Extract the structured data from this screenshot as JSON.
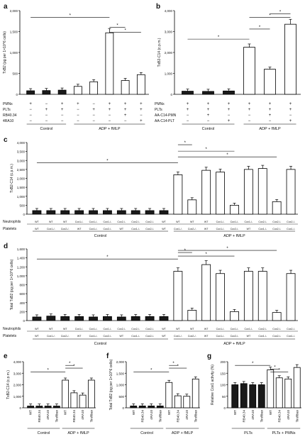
{
  "chart_data": [
    {
      "panel": "a",
      "type": "bar",
      "ylabel": "TxB2 (pg per 1×10^6 cells)",
      "ylim": [
        0,
        2000
      ],
      "yticks": [
        "0",
        "500",
        "1,000",
        "1,500",
        "2,000"
      ],
      "values": [
        85,
        90,
        100,
        190,
        300,
        1470,
        330,
        470
      ],
      "filled": [
        true,
        true,
        true,
        false,
        false,
        false,
        false,
        false
      ],
      "row_labels": [
        "PMNs",
        "PLTs",
        "RB40.34",
        "4RA10"
      ],
      "rows": [
        [
          "+",
          "−",
          "+",
          "+",
          "−",
          "+",
          "+",
          "+"
        ],
        [
          "−",
          "+",
          "+",
          "−",
          "+",
          "+",
          "+",
          "+"
        ],
        [
          "−",
          "−",
          "−",
          "−",
          "−",
          "−",
          "+",
          "−"
        ],
        [
          "−",
          "−",
          "−",
          "−",
          "−",
          "−",
          "−",
          "+"
        ]
      ],
      "groups": [
        "Control",
        "ADP + fMLP"
      ],
      "star": "*"
    },
    {
      "panel": "b",
      "type": "bar",
      "ylabel": "TxB2-C14 (c.p.m.)",
      "ylim": [
        0,
        4000
      ],
      "yticks": [
        "0",
        "1,000",
        "2,000",
        "3,000",
        "4,000"
      ],
      "values": [
        150,
        140,
        160,
        2250,
        1200,
        3350
      ],
      "filled": [
        true,
        true,
        true,
        false,
        false,
        false
      ],
      "row_labels": [
        "PMNs",
        "PLTs",
        "AA-C14-PMN",
        "AA-C14-PLT"
      ],
      "rows": [
        [
          "+",
          "+",
          "+",
          "+",
          "+",
          "+"
        ],
        [
          "+",
          "+",
          "+",
          "+",
          "+",
          "+"
        ],
        [
          "−",
          "+",
          "−",
          "−",
          "+",
          "−"
        ],
        [
          "−",
          "−",
          "+",
          "−",
          "−",
          "+"
        ]
      ],
      "groups": [
        "Control",
        "ADP + fMLP"
      ],
      "star": "*"
    },
    {
      "panel": "c",
      "type": "bar",
      "ylabel": "TxB2-C14 (c.p.m.)",
      "ylim": [
        0,
        4000
      ],
      "yticks": [
        "0",
        "500",
        "1,000",
        "1,500",
        "2,000",
        "2,500",
        "3,000",
        "3,500",
        "4,000"
      ],
      "values": [
        200,
        200,
        200,
        200,
        200,
        200,
        200,
        200,
        200,
        200,
        2200,
        800,
        2450,
        2350,
        500,
        2500,
        2550,
        700,
        2500
      ],
      "filled": [
        true,
        true,
        true,
        true,
        true,
        true,
        true,
        true,
        true,
        true,
        false,
        false,
        false,
        false,
        false,
        false,
        false,
        false,
        false
      ],
      "neutrophils": [
        "WT",
        "WT",
        "WT",
        "Cox1-/-",
        "Cox1-/-",
        "Cox1-/-",
        "Cox2-/-",
        "Cox2-/-",
        "Cox2-/-",
        "WT",
        "WT",
        "WT",
        "WT",
        "Cox1-/-",
        "Cox1-/-",
        "Cox1-/-",
        "Cox2-/-",
        "Cox2-/-",
        "Cox2-/-"
      ],
      "platelets": [
        "WT",
        "Cox1-/-",
        "Cox2-/-",
        "WT",
        "Cox1-/-",
        "Cox2-/-",
        "WT",
        "Cox1-/-",
        "Cox2-/-",
        "WT",
        "Cox1-/-",
        "Cox2-/-",
        "WT",
        "Cox1-/-",
        "Cox2-/-",
        "WT",
        "Cox1-/-",
        "Cox2-/-",
        "Cox1-/-"
      ],
      "row_labels": [
        "Neutrophils",
        "Platelets"
      ],
      "groups": [
        "Control",
        "ADP + fMLP"
      ],
      "star": "*"
    },
    {
      "panel": "d",
      "type": "bar",
      "ylabel": "Total TxB2 (pg per 1×10^6 cells)",
      "ylim": [
        0,
        1600
      ],
      "yticks": [
        "0",
        "200",
        "400",
        "600",
        "800",
        "1,000",
        "1,200",
        "1,400",
        "1,600"
      ],
      "values": [
        80,
        100,
        90,
        90,
        80,
        90,
        80,
        90,
        90,
        90,
        1100,
        230,
        1250,
        1050,
        200,
        1100,
        1100,
        180,
        1050
      ],
      "filled": [
        true,
        true,
        true,
        true,
        true,
        true,
        true,
        true,
        true,
        true,
        false,
        false,
        false,
        false,
        false,
        false,
        false,
        false,
        false
      ],
      "neutrophils": [
        "WT",
        "WT",
        "WT",
        "Cox1-/-",
        "Cox1-/-",
        "Cox1-/-",
        "Cox2-/-",
        "Cox2-/-",
        "Cox2-/-",
        "WT",
        "WT",
        "WT",
        "WT",
        "Cox1-/-",
        "Cox1-/-",
        "Cox1-/-",
        "Cox2-/-",
        "Cox2-/-",
        "Cox2-/-"
      ],
      "platelets": [
        "WT",
        "Cox1-/-",
        "Cox2-/-",
        "WT",
        "Cox1-/-",
        "Cox2-/-",
        "WT",
        "Cox1-/-",
        "Cox2-/-",
        "WT",
        "Cox1-/-",
        "Cox2-/-",
        "WT",
        "Cox1-/-",
        "Cox2-/-",
        "WT",
        "Cox1-/-",
        "Cox2-/-",
        "Cox1-/-"
      ],
      "row_labels": [
        "Neutrophils",
        "Platelets"
      ],
      "groups": [
        "Control",
        "ADP + fMLP"
      ],
      "star": "*"
    },
    {
      "panel": "e",
      "type": "bar",
      "ylabel": "TxB2-C14 (c.p.m.)",
      "ylim": [
        0,
        4000
      ],
      "yticks": [
        "0",
        "1,000",
        "2,000",
        "3,000",
        "4,000"
      ],
      "categories": [
        "WT",
        "RB40.34",
        "4RA10",
        "Tirofiban",
        "WT",
        "RB40.34",
        "4RA10",
        "Tirofiban"
      ],
      "values": [
        150,
        150,
        150,
        150,
        2400,
        1300,
        1100,
        2400
      ],
      "filled": [
        true,
        true,
        true,
        true,
        false,
        false,
        false,
        false
      ],
      "groups": [
        "Control",
        "ADP + fMLP"
      ],
      "star": "*"
    },
    {
      "panel": "f",
      "type": "bar",
      "ylabel": "Total TxB2 (pg per 1×10^6 cells)",
      "ylim": [
        0,
        2000
      ],
      "yticks": [
        "0",
        "500",
        "1,000",
        "1,500",
        "2,000"
      ],
      "categories": [
        "WT",
        "RB40.34",
        "4RA10",
        "Tirofiban",
        "WT",
        "RB40.34",
        "4RA10",
        "Tirofiban"
      ],
      "values": [
        80,
        80,
        80,
        80,
        1100,
        520,
        500,
        1250
      ],
      "filled": [
        true,
        true,
        true,
        true,
        false,
        false,
        false,
        false
      ],
      "groups": [
        "Control",
        "ADP + fMLP"
      ],
      "star": "*"
    },
    {
      "panel": "g",
      "type": "bar",
      "ylabel": "Relative Cox1 activity (%)",
      "ylim": [
        0,
        200
      ],
      "yticks": [
        "0",
        "50",
        "100",
        "150",
        "200"
      ],
      "categories": [
        "WT",
        "RB40.34",
        "4RA10",
        "Tirofiban",
        "WT",
        "RB40.34",
        "4RA10",
        "Tirofiban"
      ],
      "values": [
        100,
        105,
        100,
        100,
        165,
        130,
        125,
        175
      ],
      "filled": [
        true,
        true,
        true,
        true,
        false,
        false,
        false,
        false
      ],
      "groups": [
        "PLTs",
        "PLTs + PMNs"
      ],
      "star": "*"
    }
  ]
}
